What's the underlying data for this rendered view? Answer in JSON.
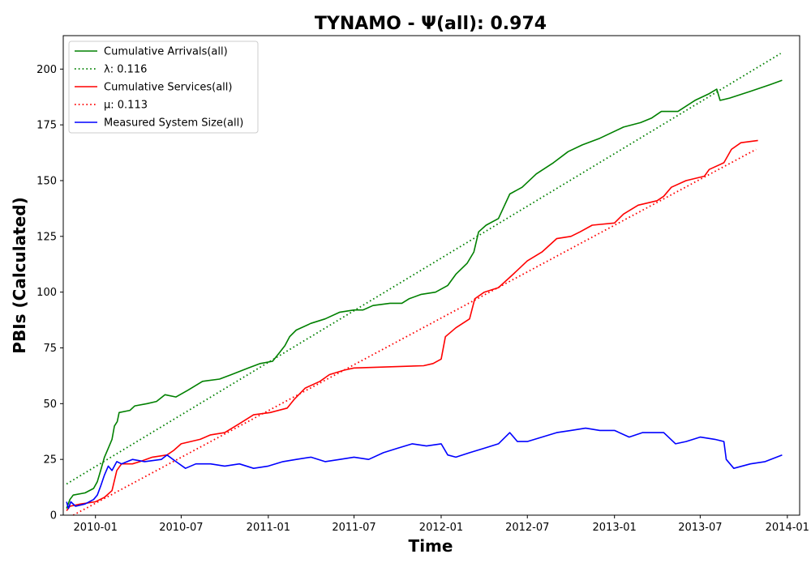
{
  "chart_data": {
    "type": "line",
    "title": "TYNAMO -  Ψ(all): 0.974",
    "xlabel": "Time",
    "ylabel": "PBIs (Calculated)",
    "xlim": [
      "2009-10-25",
      "2014-01-27"
    ],
    "ylim": [
      0,
      215
    ],
    "xticks": [
      "2010-01",
      "2010-07",
      "2011-01",
      "2011-07",
      "2012-01",
      "2012-07",
      "2013-01",
      "2013-07",
      "2014-01"
    ],
    "yticks": [
      0,
      25,
      50,
      75,
      100,
      125,
      150,
      175,
      200
    ],
    "grid": false,
    "legend_position": "top-left",
    "series": [
      {
        "name": "Cumulative Arrivals(all)",
        "color": "#008000",
        "style": "solid",
        "points": [
          [
            "2009-11-01",
            3
          ],
          [
            "2009-11-08",
            7
          ],
          [
            "2009-11-15",
            9
          ],
          [
            "2009-12-10",
            10
          ],
          [
            "2009-12-28",
            12
          ],
          [
            "2010-01-05",
            15
          ],
          [
            "2010-01-12",
            20
          ],
          [
            "2010-01-20",
            26
          ],
          [
            "2010-01-28",
            30
          ],
          [
            "2010-02-05",
            34
          ],
          [
            "2010-02-10",
            40
          ],
          [
            "2010-02-16",
            42
          ],
          [
            "2010-02-20",
            46
          ],
          [
            "2010-03-15",
            47
          ],
          [
            "2010-03-25",
            49
          ],
          [
            "2010-04-20",
            50
          ],
          [
            "2010-05-10",
            51
          ],
          [
            "2010-05-28",
            54
          ],
          [
            "2010-06-20",
            53
          ],
          [
            "2010-07-15",
            56
          ],
          [
            "2010-08-15",
            60
          ],
          [
            "2010-09-20",
            61
          ],
          [
            "2010-10-15",
            63
          ],
          [
            "2010-11-20",
            66
          ],
          [
            "2010-12-15",
            68
          ],
          [
            "2011-01-10",
            69
          ],
          [
            "2011-01-25",
            73
          ],
          [
            "2011-02-05",
            76
          ],
          [
            "2011-02-15",
            80
          ],
          [
            "2011-03-01",
            83
          ],
          [
            "2011-04-01",
            86
          ],
          [
            "2011-05-01",
            88
          ],
          [
            "2011-06-01",
            91
          ],
          [
            "2011-07-01",
            92
          ],
          [
            "2011-07-20",
            92
          ],
          [
            "2011-08-10",
            94
          ],
          [
            "2011-09-15",
            95
          ],
          [
            "2011-10-10",
            95
          ],
          [
            "2011-10-25",
            97
          ],
          [
            "2011-11-20",
            99
          ],
          [
            "2011-12-20",
            100
          ],
          [
            "2012-01-15",
            103
          ],
          [
            "2012-02-01",
            108
          ],
          [
            "2012-02-25",
            113
          ],
          [
            "2012-03-10",
            118
          ],
          [
            "2012-03-20",
            127
          ],
          [
            "2012-04-05",
            130
          ],
          [
            "2012-05-01",
            133
          ],
          [
            "2012-05-25",
            144
          ],
          [
            "2012-06-20",
            147
          ],
          [
            "2012-07-20",
            153
          ],
          [
            "2012-08-25",
            158
          ],
          [
            "2012-09-25",
            163
          ],
          [
            "2012-10-25",
            166
          ],
          [
            "2012-12-01",
            169
          ],
          [
            "2013-01-20",
            174
          ],
          [
            "2013-02-25",
            176
          ],
          [
            "2013-03-20",
            178
          ],
          [
            "2013-04-10",
            181
          ],
          [
            "2013-05-15",
            181
          ],
          [
            "2013-06-20",
            186
          ],
          [
            "2013-07-20",
            189
          ],
          [
            "2013-08-05",
            191
          ],
          [
            "2013-08-12",
            186
          ],
          [
            "2013-09-01",
            187
          ],
          [
            "2013-10-15",
            190
          ],
          [
            "2013-11-25",
            193
          ],
          [
            "2013-12-21",
            195
          ]
        ]
      },
      {
        "name": "λ: 0.116",
        "color": "#008000",
        "style": "dotted",
        "points": [
          [
            "2009-11-01",
            14
          ],
          [
            "2013-12-18",
            207
          ]
        ]
      },
      {
        "name": "Cumulative Services(all)",
        "color": "#ff0000",
        "style": "solid",
        "points": [
          [
            "2009-11-01",
            2
          ],
          [
            "2009-11-08",
            4
          ],
          [
            "2009-12-01",
            5
          ],
          [
            "2010-01-01",
            6
          ],
          [
            "2010-01-20",
            8
          ],
          [
            "2010-02-05",
            11
          ],
          [
            "2010-02-15",
            20
          ],
          [
            "2010-02-25",
            23
          ],
          [
            "2010-03-20",
            23
          ],
          [
            "2010-04-05",
            24
          ],
          [
            "2010-05-01",
            26
          ],
          [
            "2010-06-01",
            27
          ],
          [
            "2010-06-15",
            29
          ],
          [
            "2010-07-01",
            32
          ],
          [
            "2010-08-10",
            34
          ],
          [
            "2010-09-01",
            36
          ],
          [
            "2010-10-01",
            37
          ],
          [
            "2010-11-01",
            41
          ],
          [
            "2010-12-01",
            45
          ],
          [
            "2011-01-05",
            46
          ],
          [
            "2011-02-10",
            48
          ],
          [
            "2011-02-25",
            52
          ],
          [
            "2011-03-20",
            57
          ],
          [
            "2011-04-20",
            60
          ],
          [
            "2011-05-10",
            63
          ],
          [
            "2011-06-10",
            65
          ],
          [
            "2011-07-01",
            66
          ],
          [
            "2011-11-25",
            67
          ],
          [
            "2011-12-15",
            68
          ],
          [
            "2012-01-01",
            70
          ],
          [
            "2012-01-10",
            80
          ],
          [
            "2012-02-01",
            84
          ],
          [
            "2012-03-01",
            88
          ],
          [
            "2012-03-12",
            97
          ],
          [
            "2012-04-01",
            100
          ],
          [
            "2012-05-01",
            102
          ],
          [
            "2012-06-01",
            108
          ],
          [
            "2012-07-01",
            114
          ],
          [
            "2012-08-01",
            118
          ],
          [
            "2012-09-01",
            124
          ],
          [
            "2012-10-01",
            125
          ],
          [
            "2012-10-20",
            127
          ],
          [
            "2012-11-15",
            130
          ],
          [
            "2013-01-01",
            131
          ],
          [
            "2013-01-20",
            135
          ],
          [
            "2013-02-20",
            139
          ],
          [
            "2013-04-01",
            141
          ],
          [
            "2013-04-15",
            143
          ],
          [
            "2013-05-01",
            147
          ],
          [
            "2013-06-01",
            150
          ],
          [
            "2013-07-10",
            152
          ],
          [
            "2013-07-20",
            155
          ],
          [
            "2013-08-20",
            158
          ],
          [
            "2013-09-05",
            164
          ],
          [
            "2013-09-25",
            167
          ],
          [
            "2013-10-31",
            168
          ]
        ]
      },
      {
        "name": "μ: 0.113",
        "color": "#ff0000",
        "style": "dotted",
        "points": [
          [
            "2009-11-15",
            0
          ],
          [
            "2013-10-27",
            164
          ]
        ]
      },
      {
        "name": "Measured System Size(all)",
        "color": "#0000ff",
        "style": "solid",
        "points": [
          [
            "2009-11-01",
            6
          ],
          [
            "2009-11-05",
            3
          ],
          [
            "2009-11-10",
            6
          ],
          [
            "2009-11-20",
            4
          ],
          [
            "2009-12-10",
            5
          ],
          [
            "2009-12-28",
            7
          ],
          [
            "2010-01-05",
            9
          ],
          [
            "2010-01-12",
            13
          ],
          [
            "2010-01-20",
            18
          ],
          [
            "2010-01-28",
            22
          ],
          [
            "2010-02-05",
            20
          ],
          [
            "2010-02-15",
            24
          ],
          [
            "2010-02-25",
            23
          ],
          [
            "2010-03-20",
            25
          ],
          [
            "2010-04-15",
            24
          ],
          [
            "2010-05-20",
            25
          ],
          [
            "2010-06-01",
            27
          ],
          [
            "2010-06-20",
            24
          ],
          [
            "2010-07-10",
            21
          ],
          [
            "2010-08-01",
            23
          ],
          [
            "2010-09-01",
            23
          ],
          [
            "2010-10-01",
            22
          ],
          [
            "2010-11-01",
            23
          ],
          [
            "2010-12-01",
            21
          ],
          [
            "2011-01-01",
            22
          ],
          [
            "2011-02-01",
            24
          ],
          [
            "2011-03-01",
            25
          ],
          [
            "2011-04-01",
            26
          ],
          [
            "2011-05-01",
            24
          ],
          [
            "2011-06-01",
            25
          ],
          [
            "2011-07-01",
            26
          ],
          [
            "2011-08-01",
            25
          ],
          [
            "2011-09-01",
            28
          ],
          [
            "2011-10-01",
            30
          ],
          [
            "2011-11-01",
            32
          ],
          [
            "2011-12-01",
            31
          ],
          [
            "2012-01-01",
            32
          ],
          [
            "2012-01-15",
            27
          ],
          [
            "2012-02-01",
            26
          ],
          [
            "2012-03-01",
            28
          ],
          [
            "2012-04-01",
            30
          ],
          [
            "2012-05-01",
            32
          ],
          [
            "2012-05-25",
            37
          ],
          [
            "2012-06-10",
            33
          ],
          [
            "2012-07-01",
            33
          ],
          [
            "2012-08-01",
            35
          ],
          [
            "2012-09-01",
            37
          ],
          [
            "2012-10-01",
            38
          ],
          [
            "2012-11-01",
            39
          ],
          [
            "2012-12-01",
            38
          ],
          [
            "2013-01-01",
            38
          ],
          [
            "2013-02-01",
            35
          ],
          [
            "2013-03-01",
            37
          ],
          [
            "2013-04-15",
            37
          ],
          [
            "2013-05-10",
            32
          ],
          [
            "2013-06-01",
            33
          ],
          [
            "2013-07-01",
            35
          ],
          [
            "2013-08-01",
            34
          ],
          [
            "2013-08-20",
            33
          ],
          [
            "2013-08-25",
            25
          ],
          [
            "2013-09-10",
            21
          ],
          [
            "2013-10-15",
            23
          ],
          [
            "2013-11-15",
            24
          ],
          [
            "2013-12-21",
            27
          ]
        ]
      }
    ]
  }
}
